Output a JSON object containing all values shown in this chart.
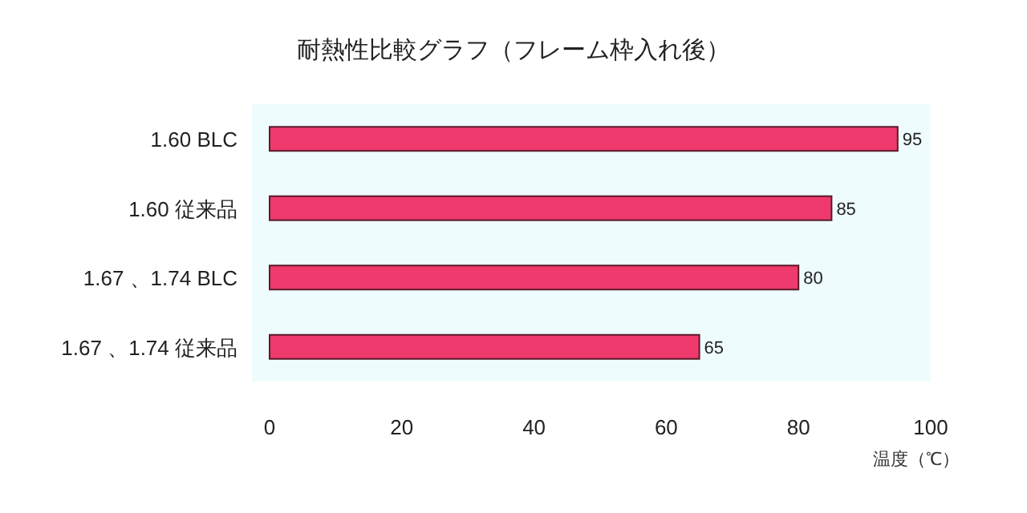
{
  "chart_data": {
    "type": "bar",
    "orientation": "horizontal",
    "title": "耐熱性比較グラフ（フレーム枠入れ後）",
    "xlabel": "温度（℃）",
    "categories": [
      "1.60 BLC",
      "1.60 従来品",
      "1.67 、1.74 BLC",
      "1.67 、1.74 従来品"
    ],
    "values": [
      95,
      85,
      80,
      65
    ],
    "color": "#ee3a6c",
    "xlim": [
      0,
      100
    ],
    "xticks": [
      0,
      20,
      40,
      60,
      80,
      100
    ],
    "data_labels": true
  }
}
